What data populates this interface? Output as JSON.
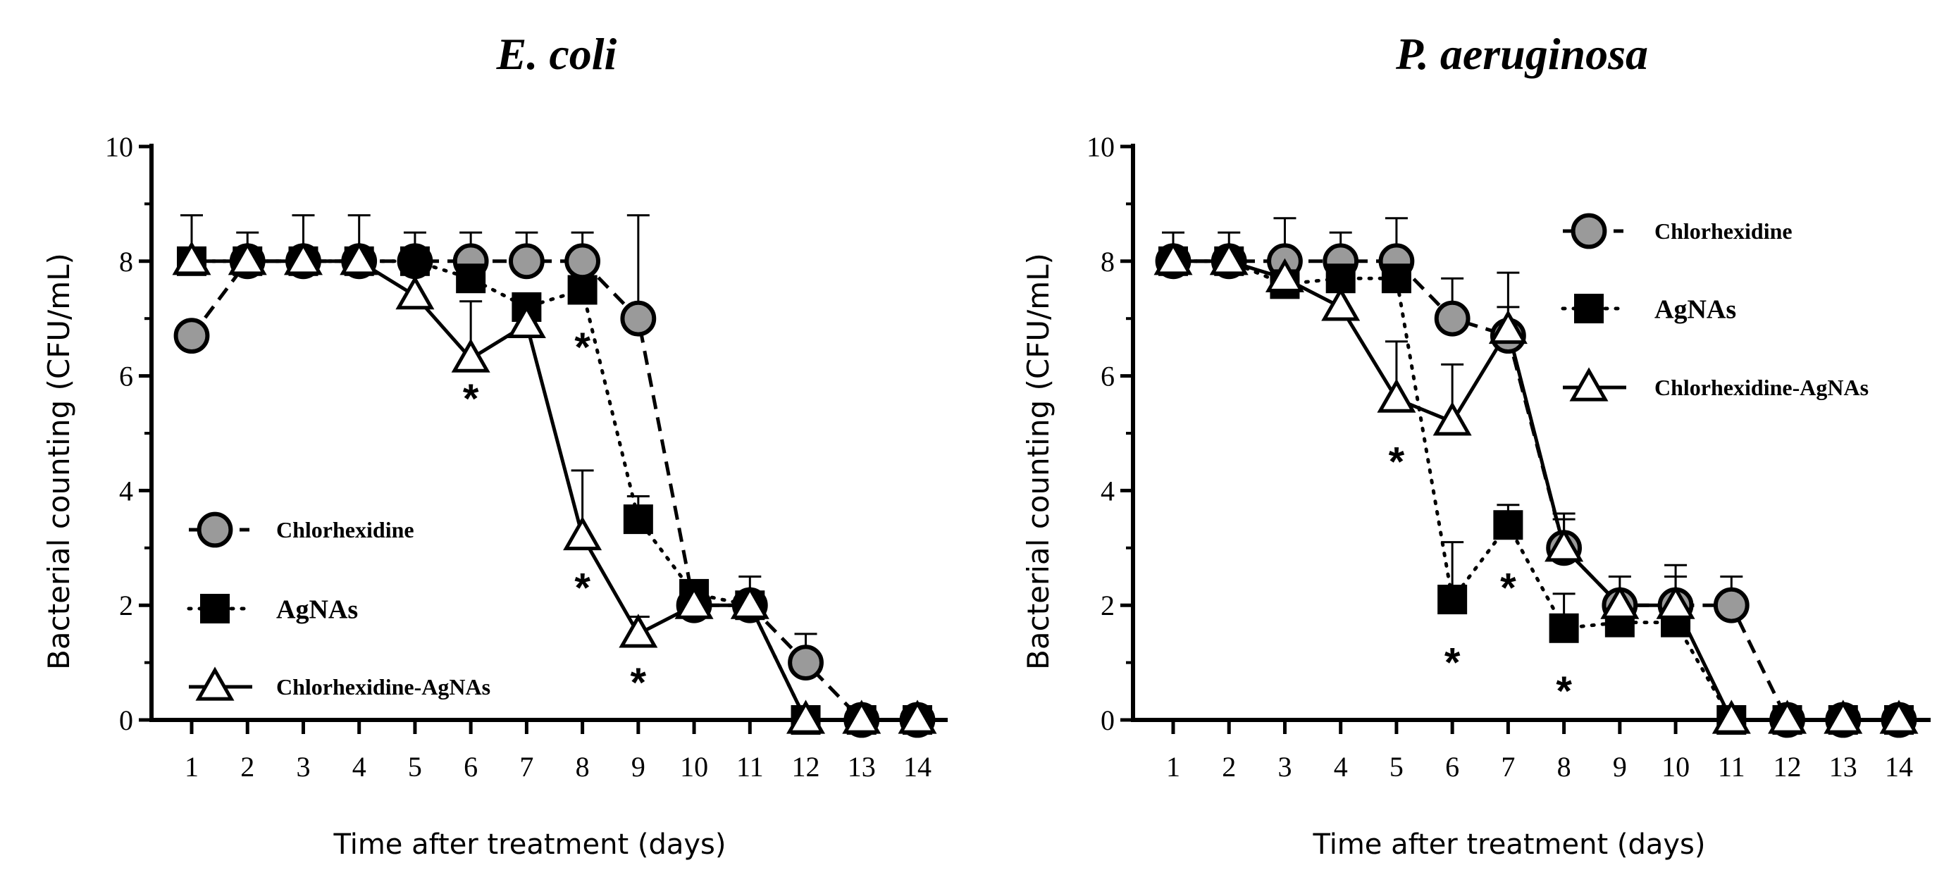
{
  "chart_data": [
    {
      "type": "line",
      "title": "E. coli",
      "xlabel": "Time after treatment (days)",
      "ylabel": "Bacterial counting (CFU/mL)",
      "xlim": [
        1,
        14
      ],
      "ylim": [
        0,
        10
      ],
      "x_ticks": [
        "1",
        "2",
        "3",
        "4",
        "5",
        "6",
        "7",
        "8",
        "9",
        "10",
        "11",
        "12",
        "13",
        "14"
      ],
      "y_ticks": [
        "0",
        "2",
        "4",
        "6",
        "8",
        "10"
      ],
      "legend": "left",
      "series": [
        {
          "name": "Chlorhexidine",
          "marker": "circle",
          "line": "dashed",
          "values": [
            6.7,
            8,
            8,
            8,
            8,
            8,
            8,
            8,
            7,
            2,
            2,
            1,
            0,
            0
          ],
          "errors": [
            0,
            0.5,
            0.8,
            0.8,
            0.5,
            0.5,
            0.5,
            0.5,
            1.8,
            0.3,
            0.5,
            0.5,
            0,
            0
          ]
        },
        {
          "name": "AgNAs",
          "marker": "square",
          "line": "dotted",
          "values": [
            8,
            8,
            8,
            8,
            8,
            7.7,
            7.2,
            7.5,
            3.5,
            2.2,
            2,
            0,
            0,
            0
          ],
          "errors": [
            0.8,
            0,
            0,
            0,
            0,
            0,
            0,
            0,
            0.4,
            0,
            0,
            0,
            0,
            0
          ]
        },
        {
          "name": "Chlorhexidine-AgNAs",
          "marker": "triangle",
          "line": "solid",
          "values": [
            8,
            8,
            8,
            8,
            7.4,
            6.3,
            6.9,
            3.2,
            1.5,
            2,
            2,
            0,
            0,
            0
          ],
          "errors": [
            0,
            0,
            0,
            0,
            0,
            1,
            0,
            1.15,
            0.3,
            0,
            0,
            0,
            0,
            0
          ]
        }
      ],
      "annotations": [
        {
          "text": "*",
          "x": 6,
          "y": 5.7
        },
        {
          "text": "*",
          "x": 8,
          "y": 6.6
        },
        {
          "text": "*",
          "x": 8,
          "y": 2.4
        },
        {
          "text": "*",
          "x": 9,
          "y": 0.75
        }
      ]
    },
    {
      "type": "line",
      "title": "P. aeruginosa",
      "xlabel": "Time after treatment (days)",
      "ylabel": "Bacterial counting (CFU/mL)",
      "xlim": [
        1,
        14
      ],
      "ylim": [
        0,
        10
      ],
      "x_ticks": [
        "1",
        "2",
        "3",
        "4",
        "5",
        "6",
        "7",
        "8",
        "9",
        "10",
        "11",
        "12",
        "13",
        "14"
      ],
      "y_ticks": [
        "0",
        "2",
        "4",
        "6",
        "8",
        "10"
      ],
      "legend": "top-right",
      "series": [
        {
          "name": "Chlorhexidine",
          "marker": "circle",
          "line": "dashed",
          "values": [
            8,
            8,
            8,
            8,
            8,
            7,
            6.7,
            3,
            2,
            2,
            2,
            0,
            0,
            0
          ],
          "errors": [
            0.5,
            0.5,
            0.75,
            0.5,
            0.75,
            0.7,
            0.5,
            0.6,
            0.5,
            0.7,
            0.5,
            0,
            0,
            0
          ]
        },
        {
          "name": "AgNAs",
          "marker": "square",
          "line": "dotted",
          "values": [
            8,
            8,
            7.6,
            7.7,
            7.7,
            2.1,
            3.4,
            1.6,
            1.7,
            1.7,
            0,
            0,
            0,
            0
          ],
          "errors": [
            0,
            0,
            0,
            0,
            0,
            1,
            0.35,
            0.6,
            0,
            0,
            0,
            0,
            0,
            0
          ]
        },
        {
          "name": "Chlorhexidine-AgNAs",
          "marker": "triangle",
          "line": "solid",
          "values": [
            8,
            8,
            7.7,
            7.2,
            5.6,
            5.2,
            6.8,
            3,
            2,
            2,
            0,
            0,
            0,
            0
          ],
          "errors": [
            0,
            0,
            0,
            0,
            1,
            1,
            1,
            0.5,
            0,
            0.5,
            0,
            0,
            0,
            0
          ]
        }
      ],
      "annotations": [
        {
          "text": "*",
          "x": 5,
          "y": 4.6
        },
        {
          "text": "*",
          "x": 6,
          "y": 1.1
        },
        {
          "text": "*",
          "x": 7,
          "y": 2.4
        },
        {
          "text": "*",
          "x": 8,
          "y": 0.6
        }
      ]
    }
  ]
}
